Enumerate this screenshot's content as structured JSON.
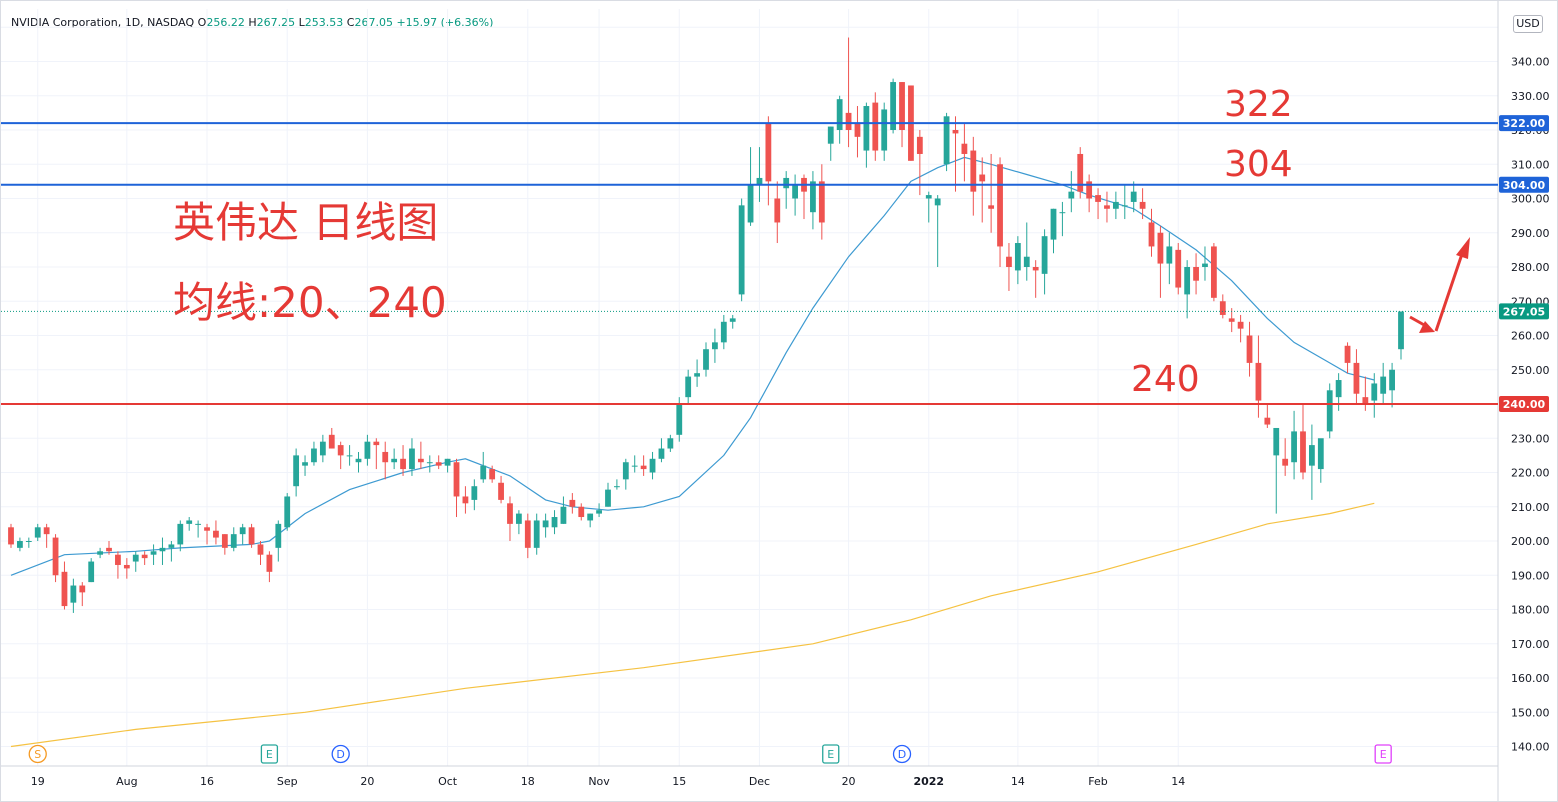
{
  "header": {
    "symbol": "NVIDIA Corporation, 1D, NASDAQ",
    "o_label": "O",
    "o": "256.22",
    "h_label": "H",
    "h": "267.25",
    "l_label": "L",
    "l": "253.53",
    "c_label": "C",
    "c": "267.05",
    "change": "+15.97 (+6.36%)"
  },
  "currency_button": "USD",
  "annotations": {
    "title": "英伟达 日线图",
    "subtitle": "均线:20、240",
    "label_322": "322",
    "label_304": "304",
    "label_240": "240"
  },
  "price_tags": [
    {
      "value": 322,
      "text": "322.00",
      "color": "#1e63d8"
    },
    {
      "value": 304,
      "text": "304.00",
      "color": "#1e63d8"
    },
    {
      "value": 267.05,
      "text": "267.05",
      "color": "#089981"
    },
    {
      "value": 240,
      "text": "240.00",
      "color": "#e53935"
    }
  ],
  "events": [
    {
      "glyph": "S",
      "date_index": 3,
      "color": "#f59a23"
    },
    {
      "glyph": "E",
      "date_index": 29,
      "color": "#26a69a"
    },
    {
      "glyph": "D",
      "date_index": 37,
      "color": "#2962ff"
    },
    {
      "glyph": "E",
      "date_index": 92,
      "color": "#26a69a"
    },
    {
      "glyph": "D",
      "date_index": 100,
      "color": "#2962ff"
    },
    {
      "glyph": "E",
      "date_index": 154,
      "color": "#e040fb"
    }
  ],
  "chart_data": {
    "type": "candlestick",
    "title": "英伟达 日线图",
    "subtitle": "均线:20、240",
    "x_tick_labels": [
      "19",
      "Aug",
      "16",
      "Sep",
      "20",
      "Oct",
      "18",
      "Nov",
      "15",
      "Dec",
      "20",
      "2022",
      "14",
      "Feb",
      "14"
    ],
    "y_tick_labels": [
      "140.00",
      "150.00",
      "160.00",
      "170.00",
      "180.00",
      "190.00",
      "200.00",
      "210.00",
      "220.00",
      "230.00",
      "250.00",
      "260.00",
      "270.00",
      "280.00",
      "290.00",
      "300.00",
      "310.00",
      "320.00",
      "330.00",
      "340.00"
    ],
    "ylim": [
      135,
      351
    ],
    "horizontal_lines": [
      {
        "value": 322,
        "color": "#1e63d8"
      },
      {
        "value": 304,
        "color": "#1e63d8"
      },
      {
        "value": 240,
        "color": "#e53935"
      }
    ],
    "last_price": 267.05,
    "up_color": "#26a69a",
    "down_color": "#ef5350",
    "ohlc": [
      [
        204,
        205,
        198,
        199
      ],
      [
        198,
        201,
        197,
        200
      ],
      [
        200,
        201,
        198,
        200
      ],
      [
        201,
        205,
        200,
        204
      ],
      [
        204,
        205,
        198,
        202
      ],
      [
        201,
        202,
        188,
        190
      ],
      [
        191,
        194,
        180,
        181
      ],
      [
        182,
        189,
        179,
        187
      ],
      [
        187,
        188,
        181,
        185
      ],
      [
        188,
        195,
        188,
        194
      ],
      [
        196,
        198,
        195,
        197
      ],
      [
        198,
        200,
        196,
        197
      ],
      [
        196,
        197,
        189,
        193
      ],
      [
        193,
        195,
        189,
        192
      ],
      [
        194,
        197,
        191,
        196
      ],
      [
        196,
        197,
        193,
        195
      ],
      [
        196,
        199,
        193,
        197
      ],
      [
        197,
        201,
        193,
        198
      ],
      [
        198,
        200,
        194,
        199
      ],
      [
        199,
        206,
        197,
        205
      ],
      [
        205,
        207,
        203,
        206
      ],
      [
        205,
        206,
        201,
        205
      ],
      [
        204,
        205,
        199,
        203
      ],
      [
        203,
        206,
        199,
        201
      ],
      [
        202,
        202,
        196,
        198
      ],
      [
        198,
        204,
        197,
        202
      ],
      [
        202,
        205,
        199,
        204
      ],
      [
        204,
        205,
        198,
        199
      ],
      [
        199,
        200,
        193,
        196
      ],
      [
        196,
        197,
        188,
        191
      ],
      [
        198,
        206,
        194,
        205
      ],
      [
        204,
        214,
        203,
        213
      ],
      [
        216,
        227,
        213,
        225
      ],
      [
        222,
        225,
        219,
        223
      ],
      [
        223,
        229,
        222,
        227
      ],
      [
        225,
        231,
        223,
        229
      ],
      [
        231,
        233,
        227,
        227
      ],
      [
        228,
        229,
        221,
        225
      ],
      [
        225,
        228,
        222,
        225
      ],
      [
        223,
        226,
        220,
        224
      ],
      [
        224,
        231,
        222,
        229
      ],
      [
        229,
        230,
        221,
        228
      ],
      [
        226,
        229,
        218,
        223
      ],
      [
        223,
        227,
        221,
        224
      ],
      [
        224,
        228,
        219,
        221
      ],
      [
        221,
        230,
        219,
        227
      ],
      [
        224,
        229,
        221,
        223
      ],
      [
        223,
        225,
        220,
        223
      ],
      [
        223,
        225,
        221,
        222
      ],
      [
        222,
        224,
        220,
        224
      ],
      [
        223,
        224,
        207,
        213
      ],
      [
        213,
        216,
        208,
        211
      ],
      [
        212,
        218,
        209,
        216
      ],
      [
        218,
        226,
        217,
        222
      ],
      [
        221,
        222,
        217,
        218
      ],
      [
        217,
        219,
        211,
        212
      ],
      [
        211,
        213,
        200,
        205
      ],
      [
        205,
        209,
        202,
        208
      ],
      [
        206,
        208,
        195,
        198
      ],
      [
        198,
        208,
        196,
        206
      ],
      [
        204,
        208,
        201,
        206
      ],
      [
        204,
        209,
        202,
        207
      ],
      [
        205,
        213,
        205,
        210
      ],
      [
        212,
        214,
        208,
        210
      ],
      [
        210,
        211,
        206,
        207
      ],
      [
        206,
        208,
        204,
        208
      ],
      [
        208,
        211,
        207,
        209
      ],
      [
        210,
        217,
        210,
        215
      ],
      [
        216,
        218,
        215,
        216
      ],
      [
        218,
        224,
        215,
        223
      ],
      [
        222,
        225,
        220,
        222
      ],
      [
        222,
        225,
        219,
        221
      ],
      [
        220,
        226,
        218,
        224
      ],
      [
        224,
        230,
        223,
        227
      ],
      [
        227,
        231,
        226,
        230
      ],
      [
        231,
        242,
        229,
        240
      ],
      [
        242,
        250,
        240,
        248
      ],
      [
        248,
        253,
        245,
        249
      ],
      [
        250,
        258,
        248,
        256
      ],
      [
        256,
        262,
        252,
        258
      ],
      [
        258,
        266,
        256,
        264
      ],
      [
        264,
        266,
        262,
        265
      ],
      [
        272,
        300,
        270,
        298
      ],
      [
        293,
        315,
        292,
        304
      ],
      [
        304,
        315,
        299,
        306
      ],
      [
        322,
        324,
        298,
        305
      ],
      [
        300,
        305,
        287,
        293
      ],
      [
        303,
        308,
        297,
        306
      ],
      [
        300,
        307,
        295,
        304
      ],
      [
        306,
        307,
        294,
        302
      ],
      [
        296,
        308,
        291,
        305
      ],
      [
        305,
        310,
        288,
        293
      ],
      [
        316,
        321,
        311,
        321
      ],
      [
        320,
        330,
        316,
        329
      ],
      [
        325,
        347,
        315,
        320
      ],
      [
        322,
        327,
        312,
        318
      ],
      [
        314,
        328,
        309,
        327
      ],
      [
        328,
        331,
        311,
        314
      ],
      [
        314,
        328,
        311,
        326
      ],
      [
        320,
        335,
        319,
        334
      ],
      [
        334,
        334,
        315,
        320
      ],
      [
        333,
        333,
        311,
        311
      ],
      [
        318,
        320,
        301,
        313
      ],
      [
        300,
        302,
        293,
        301
      ],
      [
        298,
        301,
        280,
        300
      ],
      [
        310,
        325,
        308,
        324
      ],
      [
        320,
        324,
        302,
        319
      ],
      [
        316,
        322,
        305,
        313
      ],
      [
        314,
        318,
        295,
        302
      ],
      [
        307,
        312,
        293,
        305
      ],
      [
        298,
        313,
        290,
        297
      ],
      [
        310,
        312,
        280,
        286
      ],
      [
        283,
        287,
        273,
        280
      ],
      [
        279,
        289,
        275,
        287
      ],
      [
        280,
        293,
        276,
        283
      ],
      [
        280,
        282,
        271,
        279
      ],
      [
        278,
        291,
        272,
        289
      ],
      [
        288,
        297,
        284,
        297
      ],
      [
        296,
        299,
        289,
        296
      ],
      [
        300,
        308,
        296,
        302
      ],
      [
        313,
        315,
        300,
        302
      ],
      [
        305,
        307,
        296,
        300
      ],
      [
        301,
        303,
        294,
        299
      ],
      [
        298,
        302,
        293,
        297
      ],
      [
        297,
        302,
        294,
        299
      ],
      [
        298,
        304,
        294,
        298
      ],
      [
        299,
        305,
        296,
        302
      ],
      [
        299,
        303,
        294,
        297
      ],
      [
        293,
        297,
        283,
        286
      ],
      [
        290,
        292,
        271,
        281
      ],
      [
        281,
        290,
        275,
        286
      ],
      [
        285,
        287,
        272,
        274
      ],
      [
        272,
        282,
        265,
        280
      ],
      [
        280,
        284,
        272,
        276
      ],
      [
        280,
        286,
        276,
        281
      ],
      [
        286,
        287,
        270,
        271
      ],
      [
        270,
        272,
        265,
        266
      ],
      [
        265,
        268,
        261,
        264
      ],
      [
        264,
        266,
        258,
        262
      ],
      [
        260,
        264,
        248,
        252
      ],
      [
        252,
        260,
        236,
        241
      ],
      [
        236,
        240,
        233,
        234
      ],
      [
        225,
        231,
        208,
        233
      ],
      [
        224,
        230,
        219,
        222
      ],
      [
        223,
        238,
        218,
        232
      ],
      [
        232,
        240,
        218,
        220
      ],
      [
        222,
        234,
        212,
        228
      ],
      [
        221,
        229,
        217,
        230
      ],
      [
        232,
        246,
        230,
        244
      ],
      [
        242,
        249,
        238,
        247
      ],
      [
        257,
        258,
        249,
        252
      ],
      [
        252,
        256,
        240,
        243
      ],
      [
        242,
        248,
        238,
        240
      ],
      [
        241,
        249,
        236,
        246
      ],
      [
        243,
        252,
        240,
        248
      ],
      [
        244,
        252,
        239,
        250
      ],
      [
        256,
        267,
        253,
        267
      ]
    ],
    "ma20": [
      [
        0,
        190
      ],
      [
        6,
        196
      ],
      [
        14,
        197
      ],
      [
        19,
        198
      ],
      [
        27,
        199
      ],
      [
        29,
        200
      ],
      [
        33,
        208
      ],
      [
        38,
        215
      ],
      [
        44,
        220
      ],
      [
        49,
        223
      ],
      [
        51,
        224
      ],
      [
        56,
        219
      ],
      [
        60,
        212
      ],
      [
        63,
        210
      ],
      [
        67,
        209
      ],
      [
        71,
        210
      ],
      [
        75,
        213
      ],
      [
        80,
        225
      ],
      [
        83,
        236
      ],
      [
        87,
        255
      ],
      [
        90,
        268
      ],
      [
        94,
        283
      ],
      [
        98,
        295
      ],
      [
        101,
        305
      ],
      [
        104,
        309
      ],
      [
        107,
        312
      ],
      [
        110,
        310
      ],
      [
        114,
        307
      ],
      [
        118,
        304
      ],
      [
        121,
        301
      ],
      [
        126,
        297
      ],
      [
        129,
        292
      ],
      [
        133,
        285
      ],
      [
        137,
        276
      ],
      [
        141,
        265
      ],
      [
        144,
        258
      ],
      [
        148,
        252
      ],
      [
        150,
        249
      ],
      [
        153,
        247
      ]
    ],
    "ma240": [
      [
        0,
        140
      ],
      [
        14,
        145
      ],
      [
        33,
        150
      ],
      [
        51,
        157
      ],
      [
        71,
        163
      ],
      [
        90,
        170
      ],
      [
        101,
        177
      ],
      [
        110,
        184
      ],
      [
        122,
        191
      ],
      [
        133,
        199
      ],
      [
        141,
        205
      ],
      [
        148,
        208
      ],
      [
        153,
        211
      ]
    ]
  }
}
